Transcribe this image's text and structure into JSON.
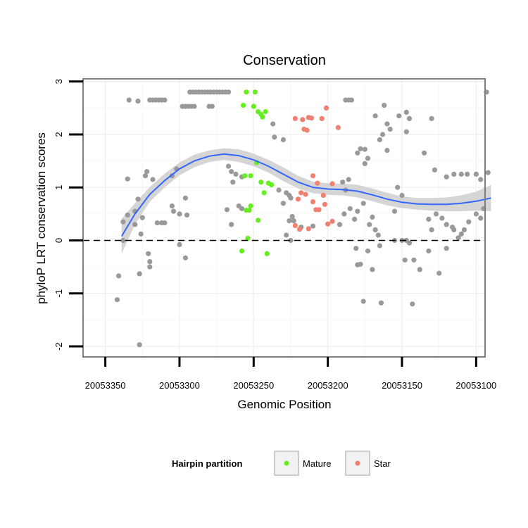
{
  "chart_data": {
    "type": "scatter",
    "title": "Conservation",
    "xlabel": "Genomic Position",
    "ylabel": "phyloP LRT conservation scores",
    "x_reversed": true,
    "xlim": [
      20053094,
      20053365
    ],
    "ylim": [
      -2.2,
      3.05
    ],
    "xticks": [
      20053350,
      20053300,
      20053250,
      20053200,
      20053150,
      20053100
    ],
    "yticks": [
      -2,
      -1,
      0,
      1,
      2,
      3
    ],
    "reference_line_y": 0,
    "grid": true,
    "legend": {
      "title": "Hairpin partition",
      "placement": "bottom",
      "entries": [
        {
          "label": "Mature",
          "color": "#66ee22"
        },
        {
          "label": "Star",
          "color": "#f08070"
        }
      ]
    },
    "colors": {
      "other": "#999999",
      "mature": "#66ee22",
      "star": "#f08070",
      "smooth": "#3366ff",
      "ribbon": "#d5d5d5"
    },
    "smooth": {
      "x": [
        20053339,
        20053330,
        20053320,
        20053310,
        20053300,
        20053290,
        20053280,
        20053270,
        20053260,
        20053250,
        20053240,
        20053230,
        20053220,
        20053210,
        20053200,
        20053190,
        20053180,
        20053170,
        20053160,
        20053150,
        20053140,
        20053130,
        20053120,
        20053110,
        20053100,
        20053090
      ],
      "y": [
        0.08,
        0.5,
        0.87,
        1.13,
        1.35,
        1.5,
        1.59,
        1.63,
        1.6,
        1.52,
        1.4,
        1.25,
        1.1,
        1.0,
        0.97,
        0.96,
        0.93,
        0.86,
        0.78,
        0.72,
        0.69,
        0.68,
        0.68,
        0.7,
        0.74,
        0.8
      ],
      "lower": [
        -0.25,
        0.3,
        0.73,
        1.0,
        1.23,
        1.38,
        1.48,
        1.52,
        1.48,
        1.4,
        1.28,
        1.12,
        0.98,
        0.89,
        0.86,
        0.85,
        0.81,
        0.74,
        0.66,
        0.61,
        0.58,
        0.56,
        0.55,
        0.55,
        0.56,
        0.55
      ],
      "upper": [
        0.41,
        0.7,
        1.01,
        1.26,
        1.47,
        1.62,
        1.7,
        1.74,
        1.72,
        1.64,
        1.52,
        1.38,
        1.22,
        1.11,
        1.08,
        1.07,
        1.05,
        0.98,
        0.9,
        0.83,
        0.8,
        0.8,
        0.81,
        0.85,
        0.92,
        1.05
      ]
    },
    "series": [
      {
        "name": "Mature",
        "color": "#66ee22",
        "points": [
          [
            20053255,
            2.8
          ],
          [
            20053249,
            2.8
          ],
          [
            20053257,
            2.55
          ],
          [
            20053250,
            2.53
          ],
          [
            20053247,
            2.43
          ],
          [
            20053245,
            2.38
          ],
          [
            20053242,
            2.43
          ],
          [
            20053244,
            2.33
          ],
          [
            20053248,
            1.47
          ],
          [
            20053256,
            1.22
          ],
          [
            20053252,
            1.22
          ],
          [
            20053240,
            1.08
          ],
          [
            20053238,
            1.05
          ],
          [
            20053245,
            1.1
          ],
          [
            20053243,
            0.9
          ],
          [
            20053252,
            0.65
          ],
          [
            20053255,
            0.57
          ],
          [
            20053253,
            0.57
          ],
          [
            20053247,
            0.38
          ],
          [
            20053254,
            0.04
          ],
          [
            20053258,
            -0.2
          ],
          [
            20053241,
            -0.25
          ]
        ]
      },
      {
        "name": "Star",
        "color": "#f08070",
        "points": [
          [
            20053222,
            2.3
          ],
          [
            20053217,
            2.28
          ],
          [
            20053213,
            2.32
          ],
          [
            20053211,
            2.31
          ],
          [
            20053204,
            2.3
          ],
          [
            20053201,
            2.5
          ],
          [
            20053193,
            2.13
          ],
          [
            20053216,
            2.1
          ],
          [
            20053214,
            2.08
          ],
          [
            20053210,
            1.22
          ],
          [
            20053207,
            1.08
          ],
          [
            20053197,
            1.07
          ],
          [
            20053218,
            0.9
          ],
          [
            20053215,
            0.87
          ],
          [
            20053203,
            0.85
          ],
          [
            20053220,
            0.78
          ],
          [
            20053210,
            0.73
          ],
          [
            20053202,
            0.68
          ],
          [
            20053206,
            0.58
          ],
          [
            20053208,
            0.58
          ],
          [
            20053197,
            0.36
          ],
          [
            20053200,
            0.31
          ],
          [
            20053222,
            0.28
          ],
          [
            20053219,
            0.21
          ],
          [
            20053213,
            0.22
          ]
        ]
      },
      {
        "name": "",
        "color": "#999999",
        "points": [
          [
            20053334,
            2.65
          ],
          [
            20053320,
            2.65
          ],
          [
            20053318,
            2.65
          ],
          [
            20053316,
            2.65
          ],
          [
            20053314,
            2.65
          ],
          [
            20053312,
            2.65
          ],
          [
            20053310,
            2.65
          ],
          [
            20053328,
            2.63
          ],
          [
            20053298,
            2.53
          ],
          [
            20053296,
            2.53
          ],
          [
            20053294,
            2.53
          ],
          [
            20053292,
            2.53
          ],
          [
            20053290,
            2.53
          ],
          [
            20053280,
            2.53
          ],
          [
            20053278,
            2.53
          ],
          [
            20053293,
            2.8
          ],
          [
            20053291,
            2.8
          ],
          [
            20053289,
            2.8
          ],
          [
            20053287,
            2.8
          ],
          [
            20053285,
            2.8
          ],
          [
            20053283,
            2.8
          ],
          [
            20053281,
            2.8
          ],
          [
            20053279,
            2.8
          ],
          [
            20053277,
            2.8
          ],
          [
            20053275,
            2.8
          ],
          [
            20053273,
            2.8
          ],
          [
            20053271,
            2.8
          ],
          [
            20053269,
            2.8
          ],
          [
            20053267,
            2.8
          ],
          [
            20053188,
            2.65
          ],
          [
            20053186,
            2.65
          ],
          [
            20053184,
            2.65
          ],
          [
            20053162,
            2.55
          ],
          [
            20053130,
            2.3
          ],
          [
            20053093,
            2.8
          ],
          [
            20053152,
            2.35
          ],
          [
            20053147,
            2.42
          ],
          [
            20053145,
            2.3
          ],
          [
            20053168,
            2.35
          ],
          [
            20053160,
            2.2
          ],
          [
            20053158,
            2.1
          ],
          [
            20053163,
            2.0
          ],
          [
            20053165,
            1.9
          ],
          [
            20053178,
            1.73
          ],
          [
            20053175,
            1.72
          ],
          [
            20053180,
            1.65
          ],
          [
            20053173,
            1.55
          ],
          [
            20053160,
            1.7
          ],
          [
            20053175,
            1.45
          ],
          [
            20053147,
            2.05
          ],
          [
            20053135,
            1.65
          ],
          [
            20053128,
            1.33
          ],
          [
            20053120,
            1.2
          ],
          [
            20053115,
            1.25
          ],
          [
            20053110,
            1.25
          ],
          [
            20053106,
            1.25
          ],
          [
            20053100,
            1.25
          ],
          [
            20053097,
            1.15
          ],
          [
            20053092,
            1.28
          ],
          [
            20053322,
            1.3
          ],
          [
            20053323,
            1.22
          ],
          [
            20053318,
            1.15
          ],
          [
            20053302,
            1.35
          ],
          [
            20053305,
            1.22
          ],
          [
            20053335,
            1.16
          ],
          [
            20053328,
            0.78
          ],
          [
            20053330,
            0.55
          ],
          [
            20053335,
            0.48
          ],
          [
            20053325,
            0.43
          ],
          [
            20053338,
            0.35
          ],
          [
            20053330,
            0.3
          ],
          [
            20053312,
            0.33
          ],
          [
            20053310,
            0.33
          ],
          [
            20053315,
            0.33
          ],
          [
            20053300,
            0.5
          ],
          [
            20053295,
            0.48
          ],
          [
            20053305,
            0.65
          ],
          [
            20053304,
            0.55
          ],
          [
            20053296,
            0.8
          ],
          [
            20053300,
            -0.08
          ],
          [
            20053296,
            -0.33
          ],
          [
            20053320,
            -0.4
          ],
          [
            20053321,
            -0.25
          ],
          [
            20053320,
            -0.5
          ],
          [
            20053327,
            -0.63
          ],
          [
            20053341,
            -0.67
          ],
          [
            20053342,
            -1.12
          ],
          [
            20053327,
            -1.97
          ],
          [
            20053338,
            0.0
          ],
          [
            20053326,
            0.12
          ],
          [
            20053267,
            1.4
          ],
          [
            20053265,
            1.3
          ],
          [
            20053262,
            1.25
          ],
          [
            20053258,
            1.2
          ],
          [
            20053264,
            1.1
          ],
          [
            20053260,
            0.65
          ],
          [
            20053258,
            0.6
          ],
          [
            20053268,
            0.58
          ],
          [
            20053265,
            0.3
          ],
          [
            20053237,
            2.2
          ],
          [
            20053236,
            1.95
          ],
          [
            20053230,
            1.9
          ],
          [
            20053233,
            0.95
          ],
          [
            20053228,
            0.9
          ],
          [
            20053226,
            0.85
          ],
          [
            20053225,
            0.8
          ],
          [
            20053230,
            0.7
          ],
          [
            20053224,
            0.45
          ],
          [
            20053226,
            0.37
          ],
          [
            20053223,
            0.37
          ],
          [
            20053228,
            0.1
          ],
          [
            20053225,
            0.0
          ],
          [
            20053218,
            0.25
          ],
          [
            20053210,
            0.27
          ],
          [
            20053190,
            1.1
          ],
          [
            20053186,
            1.15
          ],
          [
            20053188,
            0.95
          ],
          [
            20053185,
            0.6
          ],
          [
            20053182,
            0.4
          ],
          [
            20053189,
            0.5
          ],
          [
            20053192,
            0.3
          ],
          [
            20053176,
            0.7
          ],
          [
            20053180,
            0.55
          ],
          [
            20053181,
            -0.15
          ],
          [
            20053178,
            -0.45
          ],
          [
            20053180,
            -0.46
          ],
          [
            20053170,
            0.44
          ],
          [
            20053172,
            0.3
          ],
          [
            20053168,
            0.2
          ],
          [
            20053166,
            0.1
          ],
          [
            20053165,
            -0.1
          ],
          [
            20053173,
            -0.2
          ],
          [
            20053170,
            -0.55
          ],
          [
            20053164,
            -1.18
          ],
          [
            20053176,
            -1.15
          ],
          [
            20053155,
            0.55
          ],
          [
            20053150,
            0.85
          ],
          [
            20053153,
            1.0
          ],
          [
            20053155,
            0.0
          ],
          [
            20053150,
            0.0
          ],
          [
            20053147,
            0.0
          ],
          [
            20053145,
            -0.05
          ],
          [
            20053142,
            -0.37
          ],
          [
            20053148,
            -0.37
          ],
          [
            20053138,
            -0.55
          ],
          [
            20053143,
            -1.2
          ],
          [
            20053132,
            -0.2
          ],
          [
            20053130,
            0.2
          ],
          [
            20053132,
            0.4
          ],
          [
            20053127,
            0.5
          ],
          [
            20053123,
            0.42
          ],
          [
            20053120,
            0.3
          ],
          [
            20053116,
            0.25
          ],
          [
            20053115,
            0.2
          ],
          [
            20053112,
            0.05
          ],
          [
            20053110,
            0.12
          ],
          [
            20053108,
            0.2
          ],
          [
            20053120,
            -0.15
          ],
          [
            20053125,
            -0.62
          ],
          [
            20053105,
            0.35
          ],
          [
            20053100,
            0.5
          ],
          [
            20053097,
            0.42
          ],
          [
            20053095,
            0.6
          ]
        ]
      }
    ]
  }
}
